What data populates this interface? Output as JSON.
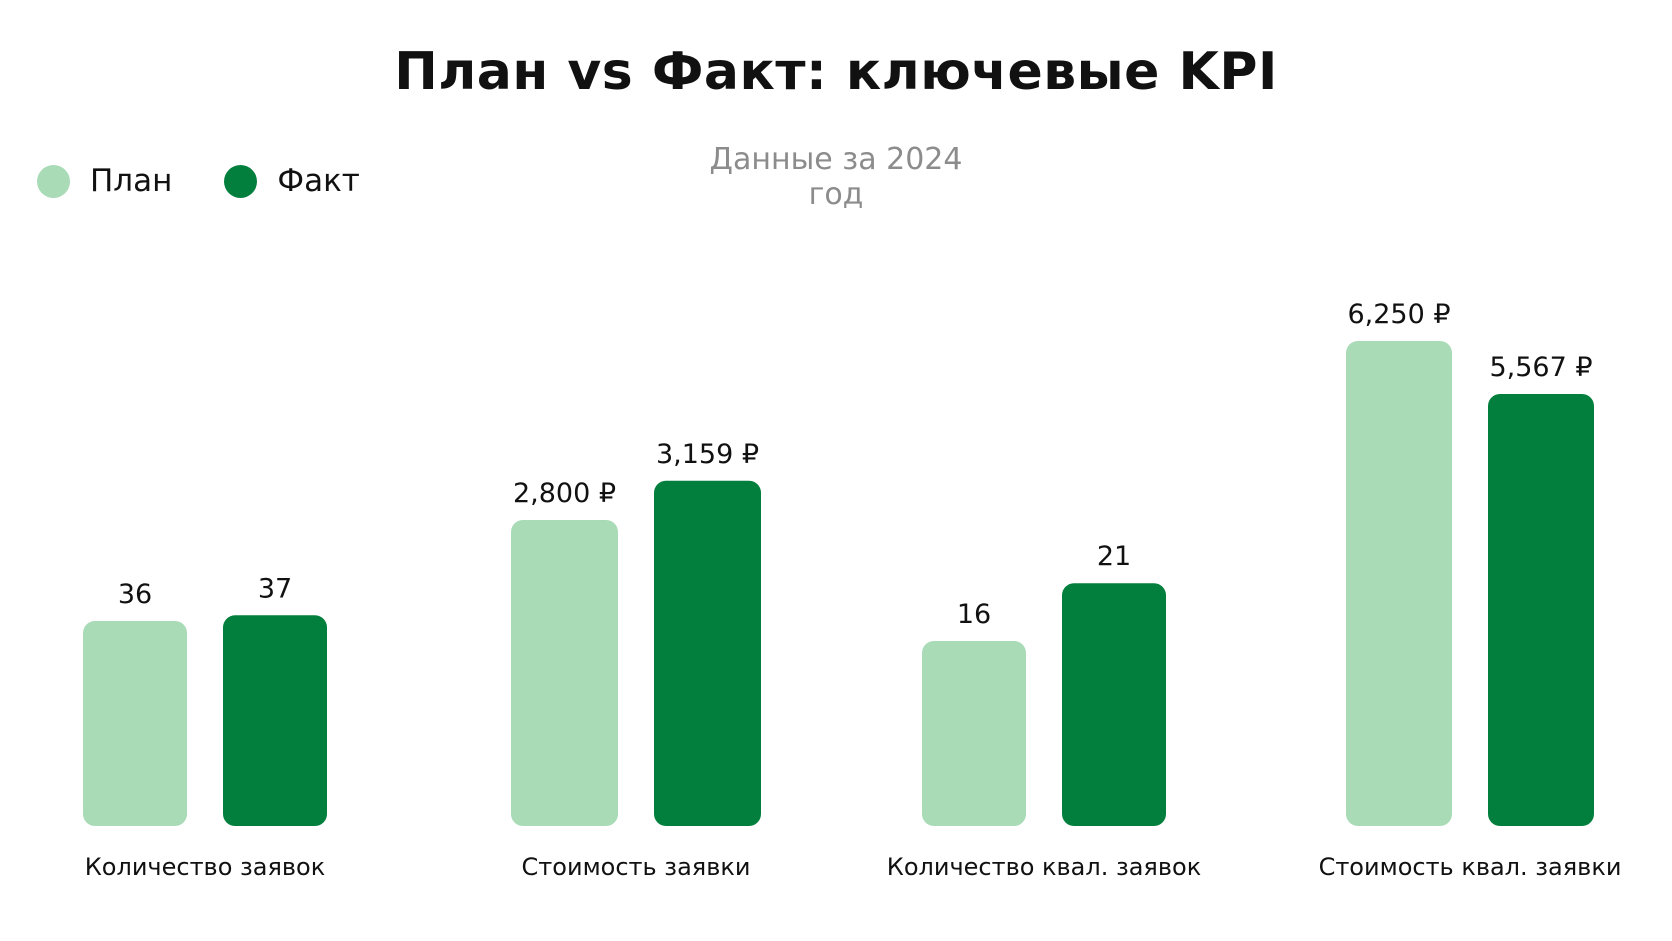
{
  "chart_data": {
    "type": "bar",
    "title": "План vs Факт: ключевые KPI",
    "subtitle": "Данные за 2024 год",
    "legend_position": "top-left",
    "grid": false,
    "categories": [
      "Количество заявок",
      "Стоимость заявки",
      "Количество квал. заявок",
      "Стоимость квал. заявки"
    ],
    "series": [
      {
        "name": "План",
        "color": "#a8dbb6",
        "values": [
          36,
          2800,
          16,
          6250
        ],
        "labels": [
          "36",
          "2,800 ₽",
          "16",
          "6,250 ₽"
        ]
      },
      {
        "name": "Факт",
        "color": "#037f3d",
        "values": [
          37,
          3159,
          21,
          5567
        ],
        "labels": [
          "37",
          "3,159 ₽",
          "21",
          "5,567 ₽"
        ]
      }
    ]
  }
}
